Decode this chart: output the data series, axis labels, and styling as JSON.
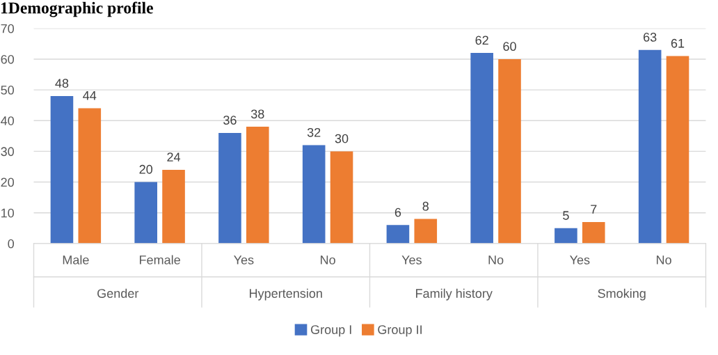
{
  "chart_data": {
    "type": "bar",
    "title": "1Demographic profile",
    "categories": [
      "Male",
      "Female",
      "Yes",
      "No",
      "Yes",
      "No",
      "Yes",
      "No"
    ],
    "annotations": [
      "Gender",
      "Hypertension",
      "Family history",
      "Smoking"
    ],
    "series": [
      {
        "name": "Group I",
        "color": "#4472c4",
        "values": [
          48,
          20,
          36,
          32,
          6,
          62,
          5,
          63
        ]
      },
      {
        "name": "Group II",
        "color": "#ed7d31",
        "values": [
          44,
          24,
          38,
          30,
          8,
          60,
          7,
          61
        ]
      }
    ],
    "ylim": [
      0,
      70
    ],
    "yticks": [
      0,
      10,
      20,
      30,
      40,
      50,
      60,
      70
    ],
    "grid": "y",
    "data_labels": true,
    "legend": "bottom"
  }
}
